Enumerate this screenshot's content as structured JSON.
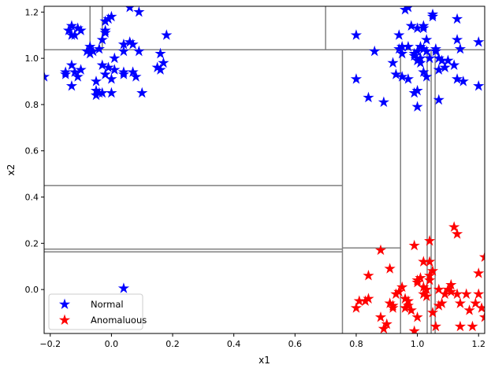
{
  "chart_data": {
    "type": "scatter",
    "xlabel": "x1",
    "ylabel": "x2",
    "xlim": [
      -0.22,
      1.22
    ],
    "ylim": [
      -0.19,
      1.225
    ],
    "xticks": [
      -0.2,
      0.0,
      0.2,
      0.4,
      0.6,
      0.8,
      1.0,
      1.2
    ],
    "xtick_labels": [
      "−0.2",
      "0.0",
      "0.2",
      "0.4",
      "0.6",
      "0.8",
      "1.0",
      "1.2"
    ],
    "yticks": [
      0.0,
      0.2,
      0.4,
      0.6,
      0.8,
      1.0,
      1.2
    ],
    "ytick_labels": [
      "0.0",
      "0.2",
      "0.4",
      "0.6",
      "0.8",
      "1.0",
      "1.2"
    ],
    "grid": false,
    "legend_position": "lower-left",
    "series": [
      {
        "name": "Normal",
        "color": "#0000ff",
        "marker": "star",
        "points": [
          [
            -0.22,
            0.92
          ],
          [
            -0.14,
            1.12
          ],
          [
            -0.13,
            1.14
          ],
          [
            -0.12,
            1.1
          ],
          [
            -0.11,
            1.13
          ],
          [
            -0.1,
            1.12
          ],
          [
            -0.13,
            1.1
          ],
          [
            -0.15,
            0.94
          ],
          [
            -0.15,
            0.93
          ],
          [
            -0.13,
            0.97
          ],
          [
            -0.12,
            0.94
          ],
          [
            -0.11,
            0.92
          ],
          [
            -0.1,
            0.95
          ],
          [
            -0.13,
            0.88
          ],
          [
            -0.08,
            1.03
          ],
          [
            -0.07,
            1.05
          ],
          [
            -0.07,
            1.02
          ],
          [
            -0.06,
            1.03
          ],
          [
            -0.04,
            1.04
          ],
          [
            -0.03,
            1.08
          ],
          [
            -0.02,
            1.16
          ],
          [
            -0.02,
            1.12
          ],
          [
            -0.01,
            1.17
          ],
          [
            0.0,
            1.18
          ],
          [
            -0.02,
            1.11
          ],
          [
            -0.03,
            0.97
          ],
          [
            -0.01,
            0.96
          ],
          [
            0.01,
            1.0
          ],
          [
            0.04,
            1.06
          ],
          [
            0.04,
            1.03
          ],
          [
            0.06,
            1.22
          ],
          [
            0.09,
            1.2
          ],
          [
            0.07,
            1.06
          ],
          [
            0.06,
            1.07
          ],
          [
            0.09,
            1.03
          ],
          [
            0.18,
            1.1
          ],
          [
            0.16,
            1.02
          ],
          [
            0.17,
            0.98
          ],
          [
            0.16,
            0.95
          ],
          [
            0.15,
            0.96
          ],
          [
            -0.05,
            0.9
          ],
          [
            -0.05,
            0.86
          ],
          [
            -0.05,
            0.84
          ],
          [
            -0.04,
            0.85
          ],
          [
            -0.03,
            0.85
          ],
          [
            0.0,
            0.85
          ],
          [
            -0.02,
            0.93
          ],
          [
            0.0,
            0.91
          ],
          [
            0.01,
            0.95
          ],
          [
            0.04,
            0.94
          ],
          [
            0.04,
            0.93
          ],
          [
            0.07,
            0.94
          ],
          [
            0.08,
            0.92
          ],
          [
            0.1,
            0.85
          ],
          [
            0.04,
            0.005
          ],
          [
            0.8,
            1.1
          ],
          [
            0.8,
            0.91
          ],
          [
            0.84,
            0.83
          ],
          [
            0.86,
            1.03
          ],
          [
            0.89,
            0.81
          ],
          [
            0.92,
            0.98
          ],
          [
            0.94,
            1.04
          ],
          [
            0.94,
            1.1
          ],
          [
            0.95,
            1.05
          ],
          [
            0.95,
            1.02
          ],
          [
            0.96,
            1.21
          ],
          [
            0.97,
            1.22
          ],
          [
            0.97,
            1.05
          ],
          [
            0.98,
            1.14
          ],
          [
            0.99,
            1.01
          ],
          [
            1.0,
            1.13
          ],
          [
            1.01,
            1.05
          ],
          [
            1.02,
            1.04
          ],
          [
            1.03,
            1.03
          ],
          [
            1.03,
            1.08
          ],
          [
            1.04,
            1.0
          ],
          [
            1.05,
            1.18
          ],
          [
            1.05,
            1.19
          ],
          [
            1.06,
            1.04
          ],
          [
            1.07,
            1.0
          ],
          [
            1.08,
            0.99
          ],
          [
            1.09,
            0.96
          ],
          [
            1.1,
            0.99
          ],
          [
            1.12,
            0.97
          ],
          [
            1.13,
            1.17
          ],
          [
            1.13,
            1.08
          ],
          [
            1.14,
            1.04
          ],
          [
            1.13,
            0.91
          ],
          [
            1.15,
            0.9
          ],
          [
            1.2,
            1.07
          ],
          [
            1.2,
            0.88
          ],
          [
            0.93,
            0.93
          ],
          [
            0.95,
            0.92
          ],
          [
            0.97,
            0.91
          ],
          [
            0.99,
            0.85
          ],
          [
            1.0,
            0.86
          ],
          [
            1.0,
            0.79
          ],
          [
            1.01,
            0.98
          ],
          [
            1.02,
            0.94
          ],
          [
            1.03,
            0.92
          ],
          [
            1.06,
            1.03
          ],
          [
            1.07,
            0.95
          ],
          [
            1.07,
            0.82
          ],
          [
            1.0,
            0.99
          ],
          [
            1.01,
            1.0
          ],
          [
            1.02,
            1.13
          ],
          [
            1.02,
            1.14
          ],
          [
            1.0,
            1.03
          ],
          [
            0.99,
            1.02
          ]
        ]
      },
      {
        "name": "Anomaluous",
        "color": "#ff0000",
        "marker": "star",
        "points": [
          [
            0.8,
            -0.08
          ],
          [
            0.81,
            -0.05
          ],
          [
            0.83,
            -0.05
          ],
          [
            0.84,
            0.06
          ],
          [
            0.84,
            -0.04
          ],
          [
            0.88,
            0.17
          ],
          [
            0.88,
            -0.12
          ],
          [
            0.89,
            -0.17
          ],
          [
            0.9,
            -0.15
          ],
          [
            0.91,
            0.09
          ],
          [
            0.91,
            -0.06
          ],
          [
            0.92,
            -0.07
          ],
          [
            0.92,
            -0.08
          ],
          [
            0.93,
            -0.02
          ],
          [
            0.94,
            -0.01
          ],
          [
            0.95,
            0.01
          ],
          [
            0.96,
            -0.04
          ],
          [
            0.96,
            -0.08
          ],
          [
            0.97,
            -0.05
          ],
          [
            0.97,
            -0.07
          ],
          [
            0.98,
            -0.09
          ],
          [
            0.99,
            0.19
          ],
          [
            1.0,
            0.04
          ],
          [
            1.0,
            0.03
          ],
          [
            1.01,
            0.05
          ],
          [
            1.0,
            -0.12
          ],
          [
            0.99,
            -0.18
          ],
          [
            1.02,
            0.01
          ],
          [
            1.02,
            -0.02
          ],
          [
            1.02,
            0.12
          ],
          [
            1.03,
            0.0
          ],
          [
            1.03,
            -0.03
          ],
          [
            1.04,
            0.21
          ],
          [
            1.04,
            0.12
          ],
          [
            1.04,
            0.06
          ],
          [
            1.04,
            0.04
          ],
          [
            1.05,
            0.08
          ],
          [
            1.05,
            -0.1
          ],
          [
            1.06,
            -0.16
          ],
          [
            1.07,
            0.0
          ],
          [
            1.07,
            -0.07
          ],
          [
            1.08,
            -0.06
          ],
          [
            1.09,
            -0.02
          ],
          [
            1.1,
            0.0
          ],
          [
            1.11,
            0.02
          ],
          [
            1.11,
            -0.01
          ],
          [
            1.12,
            0.27
          ],
          [
            1.13,
            0.24
          ],
          [
            1.13,
            -0.02
          ],
          [
            1.14,
            -0.06
          ],
          [
            1.14,
            -0.16
          ],
          [
            1.16,
            -0.02
          ],
          [
            1.17,
            -0.09
          ],
          [
            1.18,
            -0.16
          ],
          [
            1.19,
            -0.06
          ],
          [
            1.2,
            0.07
          ],
          [
            1.2,
            -0.02
          ],
          [
            1.21,
            -0.08
          ],
          [
            1.22,
            -0.12
          ],
          [
            1.22,
            0.14
          ]
        ]
      }
    ],
    "partition_lines": [
      {
        "orientation": "h",
        "value": 1.037,
        "from": -0.22,
        "to": 1.22
      },
      {
        "orientation": "v",
        "value": -0.07,
        "from": 1.037,
        "to": 1.225
      },
      {
        "orientation": "v",
        "value": -0.03,
        "from": 1.037,
        "to": 1.225
      },
      {
        "orientation": "v",
        "value": 0.7,
        "from": 1.037,
        "to": 1.225
      },
      {
        "orientation": "v",
        "value": 0.755,
        "from": -0.19,
        "to": 1.037
      },
      {
        "orientation": "h",
        "value": 0.45,
        "from": -0.22,
        "to": 0.755
      },
      {
        "orientation": "h",
        "value": 0.175,
        "from": -0.22,
        "to": 0.755
      },
      {
        "orientation": "h",
        "value": 0.163,
        "from": -0.22,
        "to": 0.755
      },
      {
        "orientation": "h",
        "value": 0.18,
        "from": 0.755,
        "to": 0.945
      },
      {
        "orientation": "v",
        "value": 0.945,
        "from": -0.19,
        "to": 1.037
      },
      {
        "orientation": "v",
        "value": 1.032,
        "from": -0.19,
        "to": 1.037
      },
      {
        "orientation": "v",
        "value": 1.045,
        "from": -0.19,
        "to": 1.037
      },
      {
        "orientation": "v",
        "value": 1.058,
        "from": -0.19,
        "to": 1.037
      }
    ]
  }
}
